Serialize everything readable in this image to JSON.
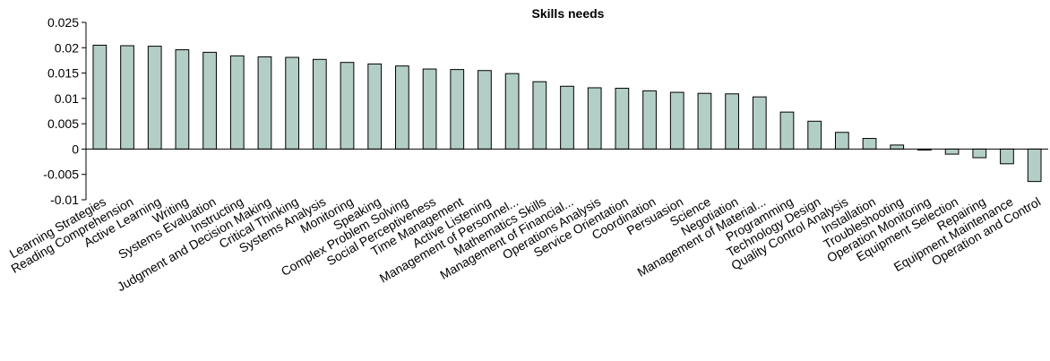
{
  "chart_data": {
    "type": "bar",
    "title": "Skills needs",
    "xlabel": "",
    "ylabel": "",
    "ylim": [
      -0.01,
      0.025
    ],
    "yticks": [
      "0.025",
      "0.02",
      "0.015",
      "0.01",
      "0.005",
      "0",
      "-0.005",
      "-0.01"
    ],
    "ytick_values": [
      0.025,
      0.02,
      0.015,
      0.01,
      0.005,
      0,
      -0.005,
      -0.01
    ],
    "grid": false,
    "legend": "none",
    "bar_color": "#b3cec6",
    "bar_edge_color": "#000000",
    "categories": [
      "Learning Strategies",
      "Reading Comprehension",
      "Active Learning",
      "Writing",
      "Systems Evaluation",
      "Instructing",
      "Judgment and Decision Making",
      "Critical Thinking",
      "Systems Analysis",
      "Monitoring",
      "Speaking",
      "Complex Problem Solving",
      "Social Perceptiveness",
      "Time Management",
      "Active Listening",
      "Management of Personnel...",
      "Mathematics Skills",
      "Management of Financial...",
      "Operations Analysis",
      "Service Orientation",
      "Coordination",
      "Persuasion",
      "Science",
      "Negotiation",
      "Management of Material...",
      "Programming",
      "Technology Design",
      "Quality Control Analysis",
      "Installation",
      "Troubleshooting",
      "Operation Monitoring",
      "Equipment Selection",
      "Repairing",
      "Equipment Maintenance",
      "Operation and Control"
    ],
    "values": [
      0.0205,
      0.0204,
      0.0203,
      0.0196,
      0.0191,
      0.0184,
      0.0182,
      0.0181,
      0.0177,
      0.0171,
      0.0168,
      0.0164,
      0.0158,
      0.0157,
      0.0155,
      0.0149,
      0.0133,
      0.0124,
      0.0121,
      0.012,
      0.0115,
      0.0112,
      0.011,
      0.0109,
      0.0103,
      0.0073,
      0.0055,
      0.0033,
      0.0021,
      0.0008,
      -0.0002,
      -0.001,
      -0.0017,
      -0.0029,
      -0.0064
    ]
  }
}
